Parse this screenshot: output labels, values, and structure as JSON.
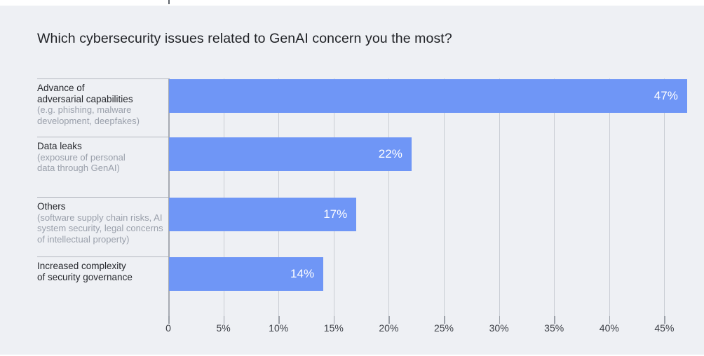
{
  "page": {
    "title": "Which cybersecurity issues related to GenAI concern you the most?"
  },
  "colors": {
    "background": "#eef0f4",
    "bar": "#6f96f6",
    "bar_value_text": "#ffffff",
    "title_text": "#202226",
    "label_text": "#26282d",
    "sublabel_text": "#9aa0ab",
    "separator_line": "#b4b8c0",
    "axis_line": "#a6aab2",
    "gridline": "#c9cdd4",
    "tick": "#9ba0a8",
    "tick_label_text": "#3d4047"
  },
  "chart_data": {
    "type": "bar",
    "orientation": "horizontal",
    "title": "Which cybersecurity issues related to GenAI concern you the most?",
    "categories": [
      "Advance of adversarial capabilities",
      "Data leaks",
      "Others",
      "Increased complexity of security governance"
    ],
    "values": [
      47,
      22,
      17,
      14
    ],
    "rows": [
      {
        "label": "Advance of\nadversarial capabilities",
        "sublabel": "(e.g. phishing, malware\ndevelopment, deepfakes)",
        "value": 47,
        "value_label": "47%"
      },
      {
        "label": "Data leaks",
        "sublabel": "(exposure of personal\ndata through GenAI)",
        "value": 22,
        "value_label": "22%"
      },
      {
        "label": "Others",
        "sublabel": "(software supply chain risks, AI\nsystem security, legal concerns\nof intellectual property)",
        "value": 17,
        "value_label": "17%"
      },
      {
        "label": "Increased complexity\nof security governance",
        "sublabel": "",
        "value": 14,
        "value_label": "14%"
      }
    ],
    "xlabel": "",
    "ylabel": "",
    "x_axis": {
      "ticks": [
        0,
        5,
        10,
        15,
        20,
        25,
        30,
        35,
        40,
        45
      ],
      "tick_labels": [
        "0",
        "5%",
        "10%",
        "15%",
        "20%",
        "25%",
        "30%",
        "35%",
        "40%",
        "45%"
      ],
      "unit": "%",
      "axis_max_shown": 47
    },
    "grid": true,
    "legend": false
  }
}
